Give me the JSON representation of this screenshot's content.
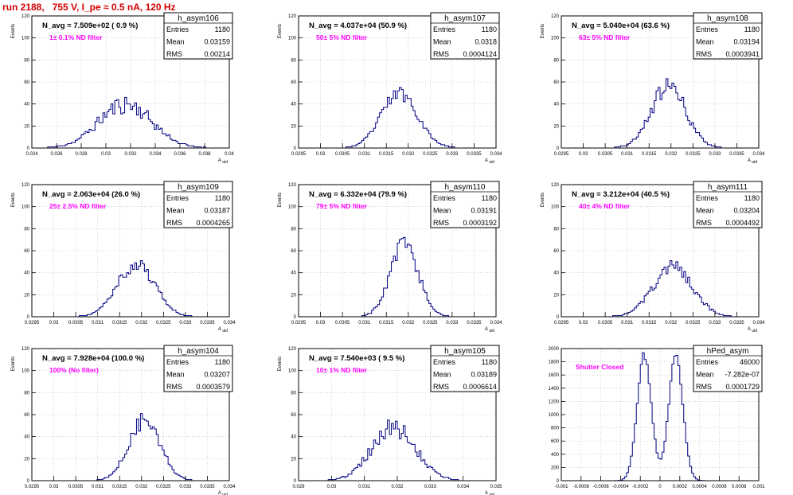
{
  "header": {
    "title": "run 2188,   755 V, I_pe ≈ 0.5 nA, 120 Hz"
  },
  "colors": {
    "histogram": "#000080",
    "annotation": "#ff00ff",
    "title": "#d40000",
    "grid": "#bbbbbb",
    "frame": "#000000"
  },
  "chart_data": [
    {
      "type": "bar",
      "name": "h_asym106",
      "stats": {
        "Entries": "1180",
        "Mean": "0.03159",
        "RMS": "0.00214"
      },
      "avg_label": "N_avg = 7.509e+02 ( 0.9 %)",
      "filter_label": "1± 0.1% ND filter",
      "ylabel": "Events",
      "xlabel": "A_uid",
      "xlim": [
        0.024,
        0.04
      ],
      "ylim": [
        0,
        120
      ],
      "xticks": [
        "0.024",
        "0.026",
        "0.028",
        "0.03",
        "0.032",
        "0.034",
        "0.036",
        "0.038",
        "0.04"
      ],
      "yticks": [
        "0",
        "20",
        "40",
        "60",
        "80",
        "100",
        "120"
      ],
      "hist": {
        "mean": 0.03159,
        "sigma": 0.00214,
        "peak": 40,
        "bins": 100,
        "seed": 11,
        "noise": 0.22
      }
    },
    {
      "type": "bar",
      "name": "h_asym107",
      "stats": {
        "Entries": "1180",
        "Mean": "0.0318",
        "RMS": "0.0004124"
      },
      "avg_label": "N_avg = 4.037e+04 (50.9 %)",
      "filter_label": "50± 5% ND filter",
      "ylabel": "Events",
      "xlabel": "A_uid",
      "xlim": [
        0.0295,
        0.034
      ],
      "ylim": [
        0,
        120
      ],
      "xticks": [
        "0.0295",
        "0.03",
        "0.0305",
        "0.031",
        "0.0315",
        "0.032",
        "0.0325",
        "0.033",
        "0.0335",
        "0.034"
      ],
      "yticks": [
        "0",
        "20",
        "40",
        "60",
        "80",
        "100",
        "120"
      ],
      "hist": {
        "mean": 0.0318,
        "sigma": 0.0004124,
        "peak": 50,
        "bins": 100,
        "seed": 23,
        "noise": 0.14
      }
    },
    {
      "type": "bar",
      "name": "h_asym108",
      "stats": {
        "Entries": "1180",
        "Mean": "0.03194",
        "RMS": "0.0003941"
      },
      "avg_label": "N_avg = 5.040e+04 (63.6 %)",
      "filter_label": "63± 5% ND filter",
      "ylabel": "Events",
      "xlabel": "A_uid",
      "xlim": [
        0.0295,
        0.034
      ],
      "ylim": [
        0,
        120
      ],
      "xticks": [
        "0.0295",
        "0.03",
        "0.0305",
        "0.031",
        "0.0315",
        "0.032",
        "0.0325",
        "0.033",
        "0.0335",
        "0.034"
      ],
      "yticks": [
        "0",
        "20",
        "40",
        "60",
        "80",
        "100",
        "120"
      ],
      "hist": {
        "mean": 0.03194,
        "sigma": 0.0003941,
        "peak": 56,
        "bins": 100,
        "seed": 37,
        "noise": 0.16
      }
    },
    {
      "type": "bar",
      "name": "h_asym109",
      "stats": {
        "Entries": "1180",
        "Mean": "0.03187",
        "RMS": "0.0004265"
      },
      "avg_label": "N_avg = 2.063e+04 (26.0 %)",
      "filter_label": "25± 2.5% ND filter",
      "ylabel": "Events",
      "xlabel": "A_uid",
      "xlim": [
        0.0295,
        0.034
      ],
      "ylim": [
        0,
        120
      ],
      "xticks": [
        "0.0295",
        "0.03",
        "0.0305",
        "0.031",
        "0.0315",
        "0.032",
        "0.0325",
        "0.033",
        "0.0335",
        "0.034"
      ],
      "yticks": [
        "0",
        "20",
        "40",
        "60",
        "80",
        "100",
        "120"
      ],
      "hist": {
        "mean": 0.03187,
        "sigma": 0.0004265,
        "peak": 48,
        "bins": 100,
        "seed": 41,
        "noise": 0.14
      }
    },
    {
      "type": "bar",
      "name": "h_asym110",
      "stats": {
        "Entries": "1180",
        "Mean": "0.03191",
        "RMS": "0.0003192"
      },
      "avg_label": "N_avg = 6.332e+04 (79.9 %)",
      "filter_label": "79± 5% ND filter",
      "ylabel": "Events",
      "xlabel": "A_uid",
      "xlim": [
        0.0295,
        0.034
      ],
      "ylim": [
        0,
        120
      ],
      "xticks": [
        "0.0295",
        "0.03",
        "0.0305",
        "0.031",
        "0.0315",
        "0.032",
        "0.0325",
        "0.033",
        "0.0335",
        "0.034"
      ],
      "yticks": [
        "0",
        "20",
        "40",
        "60",
        "80",
        "100",
        "120"
      ],
      "hist": {
        "mean": 0.03191,
        "sigma": 0.0003192,
        "peak": 66,
        "bins": 100,
        "seed": 53,
        "noise": 0.12
      }
    },
    {
      "type": "bar",
      "name": "h_asym111",
      "stats": {
        "Entries": "1180",
        "Mean": "0.03204",
        "RMS": "0.0004492"
      },
      "avg_label": "N_avg = 3.212e+04 (40.5 %)",
      "filter_label": "40± 4% ND filter",
      "ylabel": "Events",
      "xlabel": "A_uid",
      "xlim": [
        0.0295,
        0.034
      ],
      "ylim": [
        0,
        120
      ],
      "xticks": [
        "0.0295",
        "0.03",
        "0.0305",
        "0.031",
        "0.0315",
        "0.032",
        "0.0325",
        "0.033",
        "0.0335",
        "0.034"
      ],
      "yticks": [
        "0",
        "20",
        "40",
        "60",
        "80",
        "100",
        "120"
      ],
      "hist": {
        "mean": 0.03204,
        "sigma": 0.0004492,
        "peak": 45,
        "bins": 100,
        "seed": 67,
        "noise": 0.14
      }
    },
    {
      "type": "bar",
      "name": "h_asym104",
      "stats": {
        "Entries": "1180",
        "Mean": "0.03207",
        "RMS": "0.0003579"
      },
      "avg_label": "N_avg = 7.928e+04 (100.0 %)",
      "filter_label": "100% (No filter)",
      "ylabel": "Events",
      "xlabel": "A_uid",
      "xlim": [
        0.0295,
        0.034
      ],
      "ylim": [
        0,
        120
      ],
      "xticks": [
        "0.0295",
        "0.03",
        "0.0305",
        "0.031",
        "0.0315",
        "0.032",
        "0.0325",
        "0.033",
        "0.0335",
        "0.034"
      ],
      "yticks": [
        "0",
        "20",
        "40",
        "60",
        "80",
        "100",
        "120"
      ],
      "hist": {
        "mean": 0.03207,
        "sigma": 0.0003579,
        "peak": 56,
        "bins": 100,
        "seed": 79,
        "noise": 0.15
      }
    },
    {
      "type": "bar",
      "name": "h_asym105",
      "stats": {
        "Entries": "1180",
        "Mean": "0.03189",
        "RMS": "0.0006614"
      },
      "avg_label": "N_avg = 7.540e+03 ( 9.5 %)",
      "filter_label": "10± 1% ND filter",
      "ylabel": "Events",
      "xlabel": "A_uid",
      "xlim": [
        0.029,
        0.035
      ],
      "ylim": [
        0,
        120
      ],
      "xticks": [
        "0.029",
        "0.03",
        "0.031",
        "0.032",
        "0.033",
        "0.034",
        "0.035"
      ],
      "yticks": [
        "0",
        "20",
        "40",
        "60",
        "80",
        "100",
        "120"
      ],
      "hist": {
        "mean": 0.03189,
        "sigma": 0.0006614,
        "peak": 48,
        "bins": 100,
        "seed": 83,
        "noise": 0.18
      }
    },
    {
      "type": "bar",
      "name": "hPed_asym",
      "stats": {
        "Entries": "46000",
        "Mean": "-7.282e-07",
        "RMS": "0.0001729"
      },
      "avg_label": "",
      "filter_label": "Shutter Closed",
      "ylabel": "",
      "xlabel": "",
      "xlim": [
        -0.001,
        0.001
      ],
      "ylim": [
        0,
        2000
      ],
      "xticks": [
        "-0.001",
        "-0.0008",
        "-0.0006",
        "-0.0004",
        "-0.0002",
        "0",
        "0.0002",
        "0.0004",
        "0.0006",
        "0.0008",
        "0.001"
      ],
      "yticks": [
        "0",
        "200",
        "400",
        "600",
        "800",
        "1000",
        "1200",
        "1400",
        "1600",
        "1800",
        "2000"
      ],
      "hist": {
        "peaks": [
          [
            -0.00016,
            7.2e-05,
            1900
          ],
          [
            0.00016,
            7.2e-05,
            1880
          ]
        ],
        "bins": 100,
        "seed": 97,
        "noise": 0.03
      }
    }
  ]
}
